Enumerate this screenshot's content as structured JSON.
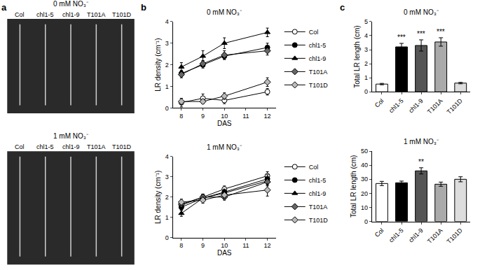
{
  "image_panel": {
    "panel_label": "a",
    "sections": [
      {
        "title": "0 mM NO₃⁻",
        "labels": [
          "Col",
          "chl1-5",
          "chl1-9",
          "T101A",
          "T101D"
        ]
      },
      {
        "title": "1 mM NO₃⁻",
        "labels": [
          "Col",
          "chl1-5",
          "chl1-9",
          "T101A",
          "T101D"
        ]
      }
    ]
  },
  "chart_data": [
    {
      "type": "line",
      "panel_label": "b",
      "title": "0 mM NO₃⁻",
      "x_label": "DAS",
      "y_label": "LR density (cm⁻¹)",
      "x": [
        8,
        9,
        10,
        12
      ],
      "xlim": [
        7.6,
        12.4
      ],
      "xticks": [
        8,
        9,
        10,
        11,
        12
      ],
      "ylim": [
        0,
        4
      ],
      "yticks": [
        0,
        1,
        2,
        3,
        4
      ],
      "grid": false,
      "legend": "right",
      "series": [
        {
          "name": "Col",
          "color": "#ffffff",
          "marker": "circle",
          "values": [
            0.25,
            0.45,
            0.35,
            0.75
          ],
          "errors": [
            0.2,
            0.2,
            0.15,
            0.15
          ]
        },
        {
          "name": "chl1-5",
          "color": "#000000",
          "marker": "circle",
          "values": [
            1.6,
            2.0,
            2.4,
            2.8
          ],
          "errors": [
            0.15,
            0.15,
            0.15,
            0.2
          ]
        },
        {
          "name": "chl1-9",
          "color": "#000000",
          "marker": "triangle-up",
          "values": [
            1.9,
            2.4,
            3.0,
            3.5
          ],
          "errors": [
            0.2,
            0.25,
            0.25,
            0.2
          ]
        },
        {
          "name": "T101A",
          "color": "#666666",
          "marker": "diamond",
          "values": [
            1.55,
            2.05,
            2.45,
            2.65
          ],
          "errors": [
            0.15,
            0.15,
            0.2,
            0.2
          ]
        },
        {
          "name": "T101D",
          "color": "#bbbbbb",
          "marker": "diamond",
          "values": [
            0.3,
            0.3,
            0.55,
            1.2
          ],
          "errors": [
            0.15,
            0.1,
            0.15,
            0.2
          ]
        }
      ]
    },
    {
      "type": "line",
      "title": "1 mM NO₃⁻",
      "x_label": "DAS",
      "y_label": "LR density (cm⁻¹)",
      "x": [
        8,
        9,
        10,
        12
      ],
      "xlim": [
        7.6,
        12.4
      ],
      "xticks": [
        8,
        9,
        10,
        11,
        12
      ],
      "ylim": [
        0,
        4
      ],
      "yticks": [
        0,
        1,
        2,
        3,
        4
      ],
      "grid": false,
      "legend": "right",
      "series": [
        {
          "name": "Col",
          "color": "#ffffff",
          "marker": "circle",
          "values": [
            1.6,
            2.0,
            2.4,
            3.05
          ],
          "errors": [
            0.15,
            0.15,
            0.15,
            0.2
          ]
        },
        {
          "name": "chl1-5",
          "color": "#000000",
          "marker": "circle",
          "values": [
            1.5,
            1.95,
            2.25,
            2.9
          ],
          "errors": [
            0.15,
            0.15,
            0.15,
            0.2
          ]
        },
        {
          "name": "chl1-9",
          "color": "#000000",
          "marker": "triangle-up",
          "values": [
            1.2,
            1.95,
            2.2,
            2.8
          ],
          "errors": [
            0.15,
            0.15,
            0.15,
            0.2
          ]
        },
        {
          "name": "T101A",
          "color": "#666666",
          "marker": "diamond",
          "values": [
            1.65,
            2.0,
            2.0,
            2.75
          ],
          "errors": [
            0.15,
            0.15,
            0.15,
            0.2
          ]
        },
        {
          "name": "T101D",
          "color": "#bbbbbb",
          "marker": "diamond",
          "values": [
            1.75,
            1.85,
            2.1,
            2.35
          ],
          "errors": [
            0.15,
            0.15,
            0.15,
            0.3
          ]
        }
      ]
    },
    {
      "type": "bar",
      "panel_label": "c",
      "title": "0 mM NO₃⁻",
      "y_label": "Total LR length (cm)",
      "categories": [
        "Col",
        "chl1-5",
        "chl1-9",
        "T101A",
        "T101D"
      ],
      "values": [
        0.55,
        3.2,
        3.3,
        3.55,
        0.62
      ],
      "errors": [
        0.05,
        0.25,
        0.4,
        0.3,
        0.05
      ],
      "colors": [
        "#ffffff",
        "#000000",
        "#555555",
        "#aaaaaa",
        "#dddddd"
      ],
      "ylim": [
        0,
        5
      ],
      "yticks": [
        0,
        1,
        2,
        3,
        4,
        5
      ],
      "grid": false,
      "annotations": [
        {
          "category": "chl1-5",
          "text": "***"
        },
        {
          "category": "chl1-9",
          "text": "***"
        },
        {
          "category": "T101A",
          "text": "***"
        }
      ]
    },
    {
      "type": "bar",
      "title": "1 mM NO₃⁻",
      "y_label": "Total LR length (cm)",
      "categories": [
        "Col",
        "chl1-5",
        "chl1-9",
        "T101A",
        "T101D"
      ],
      "values": [
        27,
        27.5,
        36,
        26.5,
        30
      ],
      "errors": [
        1.5,
        1.2,
        2.2,
        1.5,
        1.8
      ],
      "colors": [
        "#ffffff",
        "#000000",
        "#555555",
        "#aaaaaa",
        "#dddddd"
      ],
      "ylim": [
        0,
        50
      ],
      "yticks": [
        0,
        10,
        20,
        30,
        40,
        50
      ],
      "grid": false,
      "annotations": [
        {
          "category": "chl1-9",
          "text": "**"
        }
      ]
    }
  ]
}
